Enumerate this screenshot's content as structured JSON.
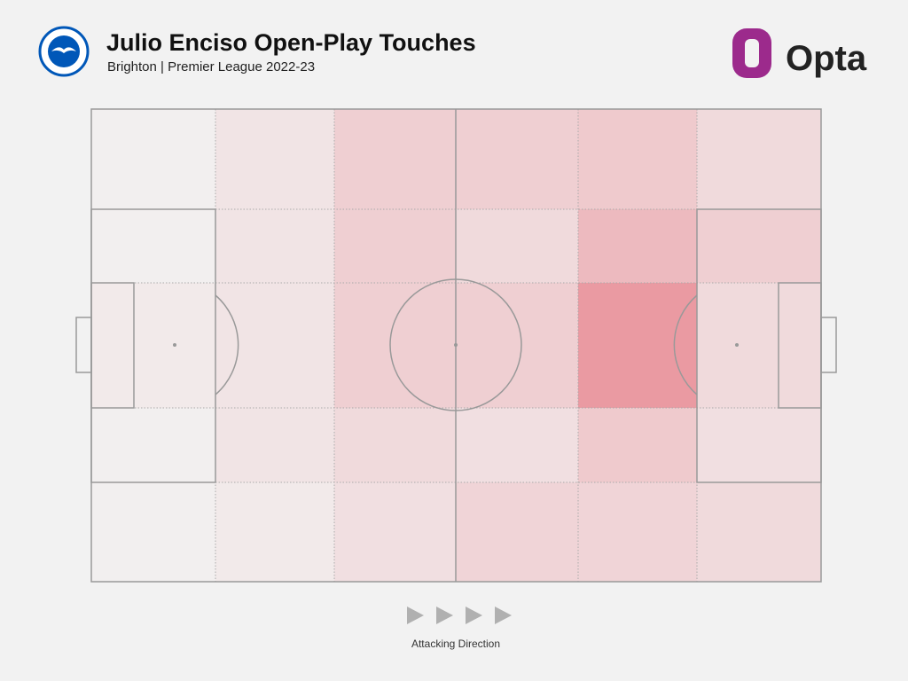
{
  "chart_data": {
    "type": "heatmap",
    "title": "Julio Enciso Open-Play Touches",
    "subtitle": "Brighton | Premier League 2022-23",
    "logo": "Opta",
    "annotation": "Attacking Direction",
    "colors": [
      "#f2efef",
      "#ea9aa2"
    ],
    "values": [
      [
        0,
        1,
        3,
        3,
        3.5,
        2
      ],
      [
        0,
        1,
        3,
        2,
        5,
        3
      ],
      [
        0.5,
        1,
        3,
        3,
        8,
        2
      ],
      [
        0,
        1,
        2,
        1.5,
        3.5,
        1.5
      ],
      [
        0,
        0.5,
        1.5,
        2.5,
        2.5,
        2
      ]
    ]
  }
}
